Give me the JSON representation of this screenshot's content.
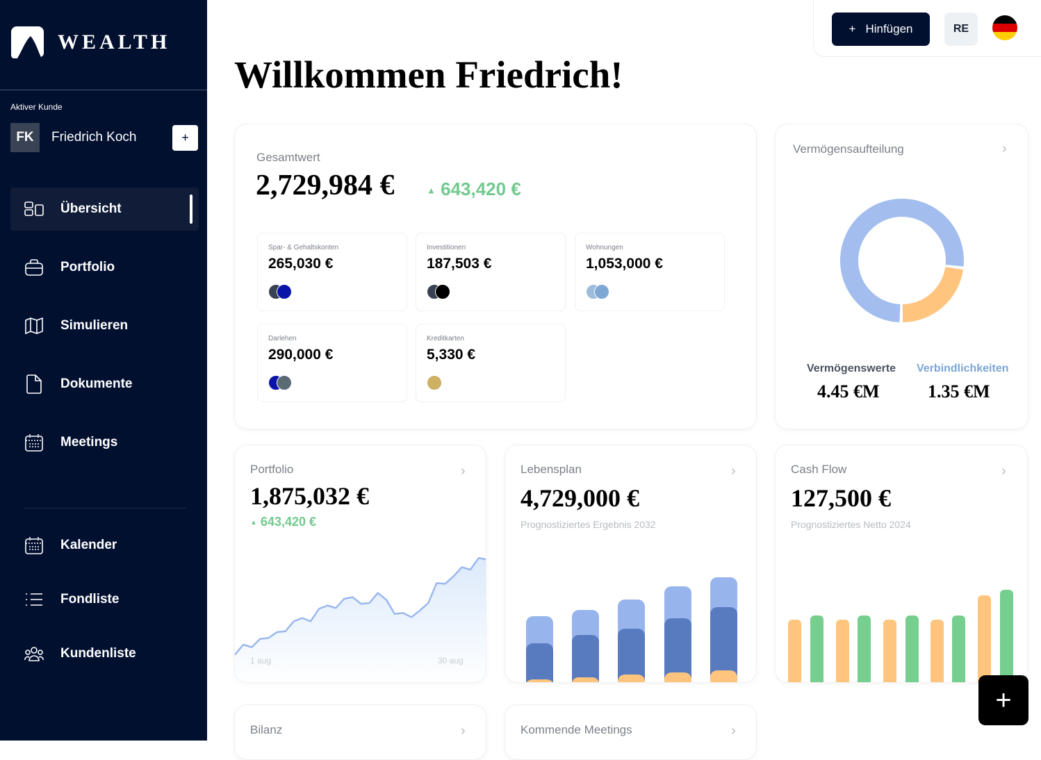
{
  "brand": {
    "name": "WEALTH"
  },
  "sidebar": {
    "active_client_label": "Aktiver Kunde",
    "client": {
      "initials": "FK",
      "name": "Friedrich Koch",
      "add_label": "+"
    },
    "items": [
      {
        "label": "Übersicht",
        "icon": "dashboard-icon",
        "active": true
      },
      {
        "label": "Portfolio",
        "icon": "briefcase-icon"
      },
      {
        "label": "Simulieren",
        "icon": "map-icon"
      },
      {
        "label": "Dokumente",
        "icon": "document-icon"
      },
      {
        "label": "Meetings",
        "icon": "calendar-icon"
      }
    ],
    "items2": [
      {
        "label": "Kalender",
        "icon": "calendar-icon"
      },
      {
        "label": "Fondliste",
        "icon": "list-icon"
      },
      {
        "label": "Kundenliste",
        "icon": "users-icon"
      }
    ]
  },
  "topbar": {
    "add_label": "Hinfügen",
    "user_initials": "RE",
    "language": "de",
    "flag_colors": [
      "#000000",
      "#dd0000",
      "#ffce00"
    ]
  },
  "page_title": "Willkommen Friedrich!",
  "total": {
    "label": "Gesamtwert",
    "value": "2,729,984 €",
    "change": "643,420 €",
    "accounts": [
      {
        "label": "Spar- & Gehaltskonten",
        "value": "265,030 €"
      },
      {
        "label": "Investitionen",
        "value": "187,503 €"
      },
      {
        "label": "Wohnungen",
        "value": "1,053,000 €"
      },
      {
        "label": "Darlehen",
        "value": "290,000 €"
      },
      {
        "label": "Kreditkarten",
        "value": "5,330 €"
      }
    ]
  },
  "allocation": {
    "title": "Vermögensaufteilung",
    "assets_label": "Vermögenswerte",
    "assets_value": "4.45 €M",
    "liabilities_label": "Verbindlichkeiten",
    "liabilities_value": "1.35 €M"
  },
  "portfolio": {
    "title": "Portfolio",
    "value": "1,875,032 €",
    "change": "643,420 €"
  },
  "lifeplan": {
    "title": "Lebensplan",
    "value": "4,729,000 €",
    "subtitle": "Prognostiziertes Ergebnis 2032"
  },
  "cashflow": {
    "title": "Cash Flow",
    "value": "127,500 €",
    "subtitle": "Prognostiziertes Netto 2024"
  },
  "balance": {
    "title": "Bilanz"
  },
  "meetings": {
    "title": "Kommende Meetings"
  },
  "colors": {
    "navy": "#021030",
    "green": "#72c98e",
    "blue_light": "#9db8ee",
    "blue_dark": "#587bc0",
    "orange": "#ffc57e"
  },
  "chart_data": [
    {
      "type": "pie",
      "variant": "donut",
      "labels": [
        "Vermögenswerte",
        "Verbindlichkeiten"
      ],
      "values": [
        4.45,
        1.35
      ],
      "colors": [
        "#a2bdee",
        "#ffc57e"
      ]
    },
    {
      "type": "area",
      "x_tick_labels": [
        "1 aug",
        "30 aug"
      ],
      "values": [
        3,
        15,
        12,
        22,
        23,
        30,
        31,
        43,
        47,
        43,
        58,
        62,
        59,
        70,
        72,
        64,
        65,
        77,
        69,
        52,
        53,
        48,
        56,
        65,
        89,
        88,
        97,
        108,
        105,
        119,
        117
      ]
    },
    {
      "type": "bar",
      "stacked": true,
      "series": [
        {
          "values": [
            4,
            7,
            11,
            14,
            17
          ],
          "color": "#ffc57e"
        },
        {
          "values": [
            52,
            61,
            66,
            78,
            91
          ],
          "color": "#587bc0"
        },
        {
          "values": [
            39,
            36,
            42,
            46,
            43
          ],
          "color": "#97b4ec"
        }
      ]
    },
    {
      "type": "bar",
      "series": [
        {
          "values": [
            90,
            90,
            90,
            90,
            125
          ],
          "color": "#ffc57e"
        },
        {
          "values": [
            96,
            96,
            96,
            96,
            133
          ],
          "color": "#76cf8e"
        }
      ]
    }
  ]
}
